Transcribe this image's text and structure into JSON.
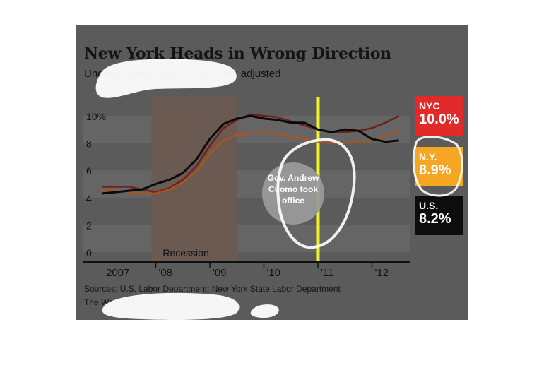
{
  "header": {
    "title": "New York Heads in Wrong Direction",
    "subtitle": "Unemployment rates, seasonally adjusted"
  },
  "sources": {
    "line1": "Sources: U.S. Labor Department; New York State Labor Department",
    "line2": "The Wall Street Journal"
  },
  "annotation": {
    "recession": "Recession",
    "cuomo": [
      "Gov. Andrew",
      "Cuomo took",
      "office"
    ]
  },
  "legend": [
    {
      "label": "NYC",
      "value": "10.0%",
      "color": "#e32a2a"
    },
    {
      "label": "N.Y.",
      "value": "8.9%",
      "color": "#f5a623"
    },
    {
      "label": "U.S.",
      "value": "8.2%",
      "color": "#0d0d0d"
    }
  ],
  "colors": {
    "panel": "#5b5b5b",
    "nyc": "#6e2020",
    "ny": "#a8561d",
    "us": "#0a0a0a",
    "cuomo_marker": "#f2f22b",
    "recession": "#6a5a52",
    "highlight": "#ffffff"
  },
  "chart_data": {
    "type": "line",
    "title": "New York Heads in Wrong Direction",
    "subtitle": "Unemployment rates, seasonally adjusted",
    "x_tick_labels": [
      "2007",
      "'08",
      "'09",
      "'10",
      "'11",
      "'12"
    ],
    "y_tick_labels": [
      "10%",
      "8",
      "6",
      "4",
      "2",
      "0"
    ],
    "y_ticks": [
      10,
      8,
      6,
      4,
      2,
      0
    ],
    "ylim": [
      0,
      11
    ],
    "xlim": [
      2007.0,
      2012.7
    ],
    "recession": [
      2007.92,
      2009.5
    ],
    "cuomo_took_office": 2011.0,
    "series": [
      {
        "name": "NYC",
        "x": [
          2007.0,
          2007.25,
          2007.5,
          2007.75,
          2008.0,
          2008.25,
          2008.5,
          2008.75,
          2009.0,
          2009.25,
          2009.5,
          2009.75,
          2010.0,
          2010.25,
          2010.5,
          2010.75,
          2011.0,
          2011.25,
          2011.5,
          2011.75,
          2012.0,
          2012.25,
          2012.5
        ],
        "y": [
          4.8,
          4.8,
          4.8,
          4.6,
          4.4,
          4.7,
          5.3,
          6.3,
          7.8,
          9.1,
          9.7,
          10.1,
          10.0,
          9.9,
          9.6,
          9.3,
          9.0,
          8.8,
          8.8,
          8.9,
          9.1,
          9.5,
          10.0
        ]
      },
      {
        "name": "N.Y.",
        "x": [
          2007.0,
          2007.25,
          2007.5,
          2007.75,
          2008.0,
          2008.25,
          2008.5,
          2008.75,
          2009.0,
          2009.25,
          2009.5,
          2009.75,
          2010.0,
          2010.25,
          2010.5,
          2010.75,
          2011.0,
          2011.25,
          2011.5,
          2011.75,
          2012.0,
          2012.25,
          2012.5
        ],
        "y": [
          4.5,
          4.5,
          4.4,
          4.3,
          4.3,
          4.6,
          5.1,
          5.9,
          7.2,
          8.2,
          8.6,
          8.7,
          8.8,
          8.7,
          8.5,
          8.3,
          8.1,
          8.0,
          8.0,
          8.1,
          8.2,
          8.5,
          8.9
        ]
      },
      {
        "name": "U.S.",
        "x": [
          2007.0,
          2007.25,
          2007.5,
          2007.75,
          2008.0,
          2008.25,
          2008.5,
          2008.75,
          2009.0,
          2009.25,
          2009.5,
          2009.75,
          2010.0,
          2010.25,
          2010.5,
          2010.75,
          2011.0,
          2011.25,
          2011.5,
          2011.75,
          2012.0,
          2012.25,
          2012.5
        ],
        "y": [
          4.3,
          4.4,
          4.5,
          4.6,
          5.0,
          5.3,
          5.8,
          6.8,
          8.3,
          9.4,
          9.8,
          10.0,
          9.8,
          9.7,
          9.5,
          9.5,
          9.0,
          8.8,
          9.0,
          8.9,
          8.3,
          8.1,
          8.2
        ]
      }
    ]
  }
}
